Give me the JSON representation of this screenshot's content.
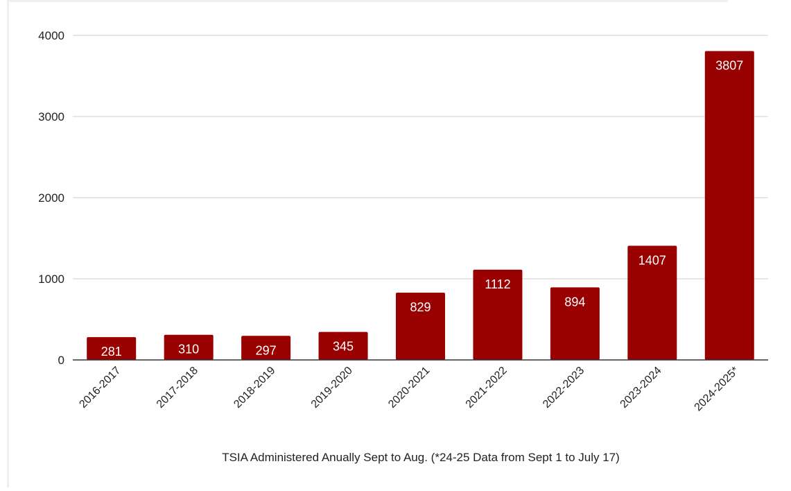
{
  "chart_data": {
    "type": "bar",
    "categories": [
      "2016-2017",
      "2017-2018",
      "2018-2019",
      "2019-2020",
      "2020-2021",
      "2021-2022",
      "2022-2023",
      "2023-2024",
      "2024-2025*"
    ],
    "values": [
      281,
      310,
      297,
      345,
      829,
      1112,
      894,
      1407,
      3807
    ],
    "title": "",
    "xlabel": "TSIA Administered Anually Sept to Aug. (*24-25 Data from Sept 1 to July 17)",
    "ylabel": "",
    "ylim": [
      0,
      4000
    ],
    "yticks": [
      0,
      1000,
      2000,
      3000,
      4000
    ],
    "grid": true,
    "legend": "none",
    "bar_color": "#990000",
    "label_color": "#ffffff",
    "grid_color": "#cccccc",
    "axis_color": "#333333"
  }
}
